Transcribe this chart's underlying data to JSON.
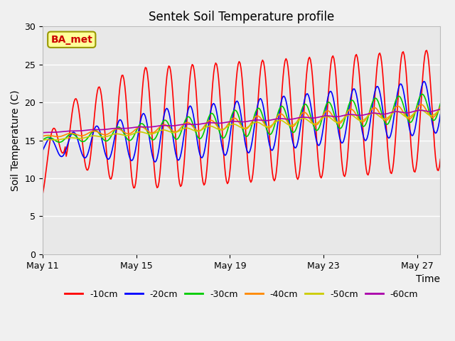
{
  "title": "Sentek Soil Temperature profile",
  "xlabel": "Time",
  "ylabel": "Soil Temperature (C)",
  "ylim": [
    0,
    30
  ],
  "yticks": [
    0,
    5,
    10,
    15,
    20,
    25,
    30
  ],
  "xtick_labels": [
    "May 11",
    "May 15",
    "May 19",
    "May 23",
    "May 27"
  ],
  "xtick_positions": [
    0,
    4,
    8,
    12,
    16
  ],
  "xlim": [
    0,
    17
  ],
  "fig_bg_color": "#f0f0f0",
  "plot_bg_color": "#e8e8e8",
  "annotation_text": "BA_met",
  "annotation_color": "#cc0000",
  "annotation_bg": "#ffff99",
  "annotation_border": "#999900",
  "legend_entries": [
    "-10cm",
    "-20cm",
    "-30cm",
    "-40cm",
    "-50cm",
    "-60cm"
  ],
  "line_colors": [
    "#ff0000",
    "#0000ff",
    "#00cc00",
    "#ff8800",
    "#cccc00",
    "#aa00aa"
  ],
  "title_fontsize": 12,
  "label_fontsize": 10,
  "tick_fontsize": 9,
  "legend_fontsize": 9
}
